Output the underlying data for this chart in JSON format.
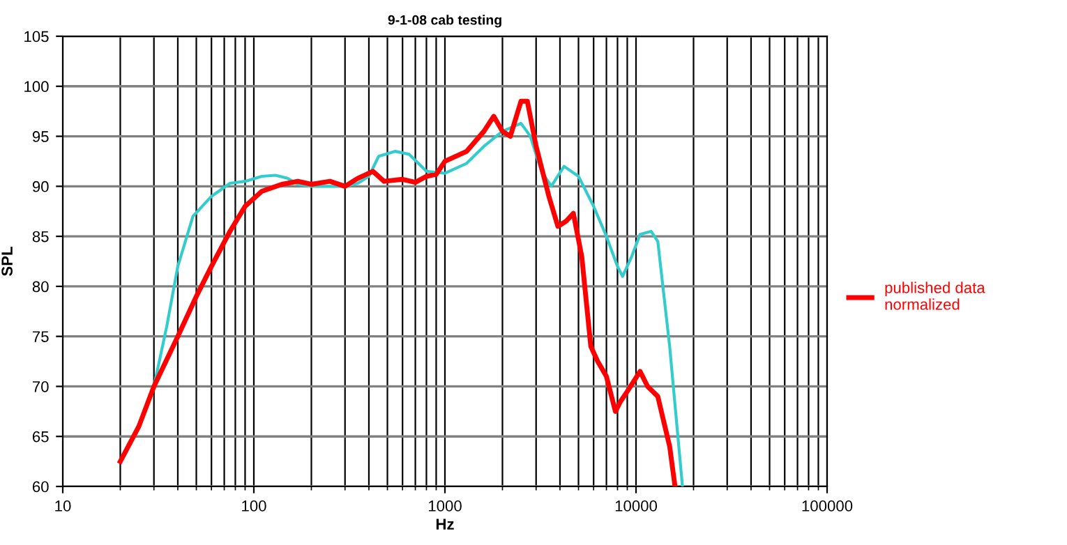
{
  "chart_data": {
    "type": "line",
    "title": "9-1-08 cab testing",
    "xlabel": "Hz",
    "ylabel": "SPL",
    "log": "x",
    "xlim": [
      10,
      100000
    ],
    "xticks": [
      10,
      100,
      1000,
      10000,
      100000
    ],
    "ylim": [
      60,
      105
    ],
    "yticks": [
      60,
      65,
      70,
      75,
      80,
      85,
      90,
      95,
      100,
      105
    ],
    "grid": true,
    "legend": "right",
    "marker": "none",
    "line_style": "solid",
    "series": [
      {
        "color": "#33cccc",
        "x": [
          30,
          35,
          40,
          48,
          60,
          75,
          90,
          110,
          130,
          150,
          170,
          200,
          300,
          350,
          400,
          450,
          550,
          650,
          800,
          1000,
          1300,
          1600,
          2000,
          2500,
          2800,
          3200,
          3600,
          4200,
          5000,
          6000,
          7000,
          8000,
          8500,
          9500,
          10500,
          12000,
          13000,
          15000,
          17500
        ],
        "values": [
          70,
          76,
          82,
          87,
          89,
          90.3,
          90.5,
          91,
          91.1,
          90.8,
          90.2,
          90,
          90,
          90.3,
          91,
          93,
          93.5,
          93.2,
          91.5,
          91.3,
          92.3,
          94,
          95.5,
          96.3,
          95,
          91.5,
          90,
          92,
          91,
          88,
          85,
          82,
          81,
          83,
          85.2,
          85.5,
          84.5,
          74,
          60
        ]
      },
      {
        "name": "published data normalized",
        "color": "#ff0000",
        "x": [
          20,
          25,
          30,
          40,
          50,
          60,
          75,
          90,
          110,
          140,
          170,
          200,
          250,
          300,
          350,
          420,
          480,
          600,
          700,
          800,
          900,
          1000,
          1300,
          1600,
          1800,
          2000,
          2200,
          2500,
          2700,
          3000,
          3500,
          3900,
          4300,
          4700,
          5200,
          5800,
          6300,
          7000,
          7800,
          8300,
          9000,
          10500,
          11500,
          13000,
          15000,
          16000
        ],
        "values": [
          62.5,
          66,
          70,
          75,
          79,
          82,
          85.5,
          88,
          89.5,
          90.2,
          90.5,
          90.2,
          90.5,
          90,
          90.8,
          91.5,
          90.5,
          90.7,
          90.4,
          91,
          91.2,
          92.5,
          93.5,
          95.5,
          97,
          95.5,
          95,
          98.5,
          98.5,
          94,
          89,
          86,
          86.5,
          87.3,
          83,
          74,
          72.5,
          71,
          67.5,
          68.5,
          69.5,
          71.5,
          70,
          69,
          64,
          60
        ]
      }
    ]
  }
}
